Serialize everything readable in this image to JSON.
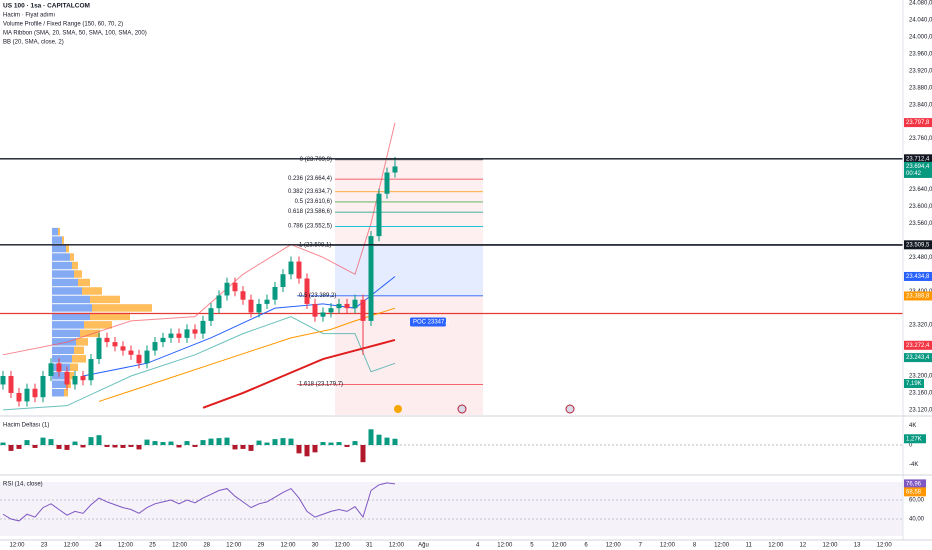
{
  "chart_data": [
    {
      "type": "candlestick",
      "title": "US 100 · 1sa · CAPITALCOM",
      "legend": [
        "Hacim · Fiyat adımı",
        "Volume Profile / Fixed Range (150, 60, 70, 2)",
        "MA Ribbon (SMA, 20, SMA, 50, SMA, 100, SMA, 200)",
        "BB (20, SMA, close, 2)"
      ],
      "open": [
        23180,
        23200,
        23160,
        23140,
        23170,
        23150,
        23200,
        23230,
        23210,
        23180,
        23200,
        23190,
        23240,
        23290,
        23280,
        23270,
        23260,
        23250,
        23230,
        23260,
        23280,
        23290,
        23300,
        23290,
        23310,
        23300,
        23330,
        23360,
        23390,
        23420,
        23400,
        23380,
        23350,
        23370,
        23380,
        23410,
        23440,
        23470,
        23430,
        23370,
        23340,
        23350,
        23360,
        23370,
        23360,
        23380,
        23330,
        23530,
        23630,
        23680
      ],
      "high": [
        23212,
        23212,
        23172,
        23182,
        23182,
        23212,
        23242,
        23242,
        23222,
        23212,
        23212,
        23252,
        23302,
        23302,
        23292,
        23282,
        23272,
        23262,
        23272,
        23292,
        23302,
        23312,
        23312,
        23322,
        23322,
        23342,
        23372,
        23402,
        23432,
        23432,
        23412,
        23392,
        23382,
        23392,
        23422,
        23452,
        23482,
        23482,
        23442,
        23382,
        23362,
        23372,
        23382,
        23382,
        23392,
        23392,
        23542,
        23642,
        23692,
        23717
      ],
      "low": [
        23168,
        23148,
        23128,
        23128,
        23138,
        23138,
        23188,
        23198,
        23168,
        23168,
        23178,
        23178,
        23228,
        23268,
        23258,
        23248,
        23238,
        23218,
        23218,
        23248,
        23268,
        23278,
        23278,
        23278,
        23288,
        23288,
        23318,
        23348,
        23378,
        23388,
        23368,
        23338,
        23338,
        23358,
        23368,
        23398,
        23428,
        23418,
        23358,
        23328,
        23328,
        23338,
        23348,
        23348,
        23348,
        23250,
        23318,
        23518,
        23618,
        23668
      ],
      "close": [
        23200,
        23160,
        23140,
        23170,
        23150,
        23200,
        23230,
        23210,
        23180,
        23200,
        23190,
        23240,
        23290,
        23280,
        23270,
        23260,
        23250,
        23230,
        23260,
        23280,
        23290,
        23300,
        23290,
        23310,
        23300,
        23330,
        23360,
        23390,
        23420,
        23400,
        23380,
        23350,
        23370,
        23380,
        23410,
        23440,
        23470,
        23430,
        23370,
        23340,
        23350,
        23360,
        23370,
        23360,
        23380,
        23330,
        23530,
        23630,
        23680,
        23694.4
      ],
      "up_color": "#089981",
      "down_color": "#f23645",
      "ylim": [
        23108,
        24087
      ],
      "yticks": [
        {
          "value": 24080,
          "label": "24.080,0"
        },
        {
          "value": 24040,
          "label": "24.040,0"
        },
        {
          "value": 24000,
          "label": "24.000,0"
        },
        {
          "value": 23960,
          "label": "23.960,0"
        },
        {
          "value": 23920,
          "label": "23.920,0"
        },
        {
          "value": 23880,
          "label": "23.880,0"
        },
        {
          "value": 23840,
          "label": "23.840,0"
        },
        {
          "value": 23800,
          "label": "23.800,0"
        },
        {
          "value": 23760,
          "label": "23.760,0"
        },
        {
          "value": 23640,
          "label": "23.640,0"
        },
        {
          "value": 23600,
          "label": "23.600,0"
        },
        {
          "value": 23560,
          "label": "23.560,0"
        },
        {
          "value": 23480,
          "label": "23.480,0"
        },
        {
          "value": 23400,
          "label": "23.400,0"
        },
        {
          "value": 23320,
          "label": "23.320,0"
        },
        {
          "value": 23200,
          "label": "23.200,0"
        },
        {
          "value": 23160,
          "label": "23.160,0"
        },
        {
          "value": 23120,
          "label": "23.120,0"
        }
      ],
      "overlays": [
        {
          "color": "#f7525f",
          "x": [
            0,
            8,
            16,
            24,
            30,
            36,
            40,
            44,
            46,
            49
          ],
          "values": [
            23250,
            23280,
            23330,
            23340,
            23440,
            23510,
            23480,
            23440,
            23560,
            23797.8
          ]
        },
        {
          "color": "#2aa5a0",
          "x": [
            0,
            8,
            16,
            24,
            30,
            36,
            40,
            44,
            46,
            49
          ],
          "values": [
            23120,
            23130,
            23200,
            23250,
            23300,
            23340,
            23300,
            23300,
            23210,
            23230
          ]
        },
        {
          "color": "#2962ff",
          "x": [
            10,
            18,
            26,
            34,
            40,
            44,
            49
          ],
          "values": [
            23200,
            23230,
            23290,
            23360,
            23370,
            23360,
            23434.8
          ]
        },
        {
          "color": "#ff9800",
          "x": [
            12,
            20,
            28,
            36,
            41,
            44,
            49
          ],
          "values": [
            23140,
            23190,
            23240,
            23290,
            23310,
            23330,
            23360
          ]
        },
        {
          "color": "#e01e1e",
          "x": [
            25,
            30,
            35,
            40,
            45,
            49
          ],
          "values": [
            23125,
            23160,
            23200,
            23240,
            23265,
            23285
          ]
        }
      ],
      "volume_profile": {
        "levels": [
          23160,
          23180,
          23200,
          23220,
          23240,
          23260,
          23280,
          23300,
          23320,
          23340,
          23360,
          23380,
          23400,
          23420,
          23440,
          23460,
          23480,
          23500,
          23520,
          23540
        ],
        "up": [
          12,
          14,
          16,
          18,
          20,
          22,
          24,
          28,
          32,
          38,
          40,
          38,
          30,
          26,
          22,
          20,
          18,
          14,
          10,
          6
        ],
        "down": [
          4,
          5,
          6,
          8,
          14,
          10,
          12,
          20,
          28,
          40,
          60,
          30,
          20,
          12,
          8,
          6,
          4,
          3,
          2,
          2
        ],
        "up_color": "#5b8def",
        "down_color": "#ffa726",
        "poc": {
          "value": 23347.4,
          "label": "POC 23347,4"
        }
      },
      "fib_levels": [
        {
          "value": 23709.9,
          "label": "0 (23.709,9)",
          "color": "#787b86"
        },
        {
          "value": 23664.4,
          "label": "0.236 (23.664,4)",
          "color": "#f23645"
        },
        {
          "value": 23634.7,
          "label": "0.382 (23.634,7)",
          "color": "#ff9800"
        },
        {
          "value": 23610.6,
          "label": "0.5 (23.610,6)",
          "color": "#4caf50"
        },
        {
          "value": 23586.6,
          "label": "0.618 (23.586,6)",
          "color": "#089981"
        },
        {
          "value": 23552.5,
          "label": "0.786 (23.552,5)",
          "color": "#00bcd4"
        },
        {
          "value": 23508.1,
          "label": "1 (23.508,1)",
          "color": "#131722"
        }
      ],
      "lower_fib_levels": [
        {
          "value": 23389.2,
          "label": "0.5 (23.389,2)",
          "color": "#2962ff"
        },
        {
          "value": 23179.7,
          "label": "1.618 (23.179,7)",
          "color": "#f23645"
        }
      ],
      "price_labels": [
        {
          "value": 23797.8,
          "label": "23.797,8",
          "color": "#f23645"
        },
        {
          "value": 23712.4,
          "label": "23.712,4",
          "color": "#131722"
        },
        {
          "value": 23694.4,
          "label": "23.694,4",
          "color": "#089981",
          "countdown": "00:42"
        },
        {
          "value": 23509.5,
          "label": "23.509,5",
          "color": "#131722"
        },
        {
          "value": 23434.8,
          "label": "23.434,8",
          "color": "#2962ff"
        },
        {
          "value": 23388.8,
          "label": "23.388,8",
          "color": "#ff9800"
        },
        {
          "value": 23272.4,
          "label": "23.272,4",
          "color": "#f23645"
        },
        {
          "value": 23243.4,
          "label": "23.243,4",
          "color": "#089981"
        }
      ],
      "volume_label": "7,19K"
    },
    {
      "type": "bar",
      "title": "Hacim Deltası (1)",
      "values": [
        0.5,
        -1.2,
        -0.8,
        1,
        -0.6,
        1.5,
        1.2,
        -0.8,
        -1,
        0.7,
        -0.5,
        1.6,
        2,
        -0.4,
        -0.5,
        -0.6,
        -0.4,
        -0.9,
        1.1,
        0.8,
        0.6,
        0.7,
        -0.5,
        0.8,
        -0.4,
        1,
        1.3,
        1.4,
        1.5,
        -0.9,
        -0.8,
        -1.2,
        0.9,
        0.5,
        1.2,
        1.4,
        1.3,
        -1.7,
        -2.3,
        -1.5,
        0.6,
        0.5,
        0.6,
        -0.4,
        0.8,
        -3.5,
        3.2,
        2.1,
        1.5,
        1.27
      ],
      "up_color": "#089981",
      "down_color": "#b2182b",
      "ylim": [
        -5.5,
        5.5
      ],
      "yticks": [
        {
          "value": 4,
          "label": "4K"
        },
        0,
        {
          "value": -4,
          "label": "-4K"
        }
      ],
      "last_value_label": "1,27K"
    },
    {
      "type": "line",
      "title": "RSI (14, close)",
      "values": [
        45,
        40,
        38,
        45,
        42,
        52,
        56,
        50,
        44,
        48,
        46,
        55,
        62,
        58,
        55,
        52,
        50,
        46,
        52,
        56,
        58,
        60,
        56,
        60,
        57,
        62,
        66,
        70,
        72,
        64,
        58,
        52,
        56,
        58,
        63,
        68,
        72,
        62,
        48,
        42,
        45,
        48,
        50,
        48,
        53,
        42,
        70,
        76,
        78,
        76.96
      ],
      "color": "#7e57c2",
      "ylim": [
        20,
        80
      ],
      "yticks": [
        {
          "value": 60,
          "label": "60,00"
        },
        {
          "value": 40,
          "label": "40,00"
        }
      ],
      "last_value_label": "76,96",
      "ma_label": {
        "value": 68.58,
        "label": "68,58",
        "color": "#ff9800"
      },
      "x_labels": [
        "12:00",
        "23",
        "12:00",
        "24",
        "12:00",
        "25",
        "12:00",
        "28",
        "12:00",
        "29",
        "12:00",
        "30",
        "12:00",
        "31",
        "12:00",
        "Ağu",
        null,
        "4",
        "12:00",
        "5",
        "12:00",
        "6",
        "12:00",
        "7",
        "12:00",
        "8",
        "12:00",
        "11",
        "12:00",
        "12",
        "12:00",
        "13",
        "12:00"
      ]
    }
  ]
}
